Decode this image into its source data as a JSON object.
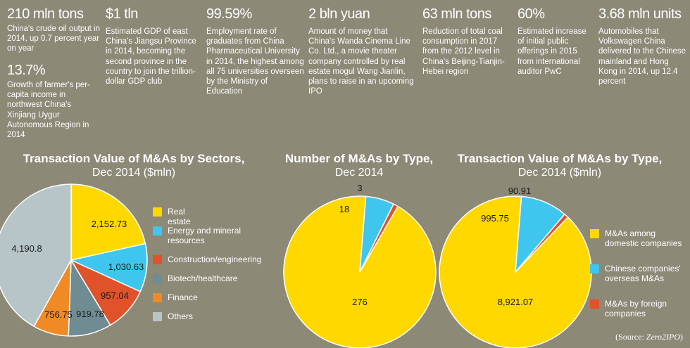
{
  "stats": [
    {
      "value": "210 mln tons",
      "desc": "China's crude oil output in 2014, up 0.7 percent year on year"
    },
    {
      "value": "13.7%",
      "desc": "Growth of farmer's per-capita income in northwest China's Xinjiang Uygur Autonomous Region in 2014"
    },
    {
      "value": "$1 tln",
      "desc": "Estimated GDP of east China's Jiangsu Province in 2014, becoming the second province in the country to join the trillion-dollar GDP club"
    },
    {
      "value": "99.59%",
      "desc": "Employment rate of graduates from China Pharmaceutical University in 2014, the highest among all 75 universities overseen by the Ministry of Education"
    },
    {
      "value": "2 bln yuan",
      "desc": "Amount of money that China's Wanda Cinema Line Co. Ltd., a movie theater company controlled by real estate mogul Wang Jianlin, plans to raise in an upcoming IPO"
    },
    {
      "value": "63 mln tons",
      "desc": "Reduction of total coal consumption in 2017 from the 2012 level in China's Beijing-Tianjin-Hebei region"
    },
    {
      "value": "60%",
      "desc": "Estimated increase of initial public offerings in 2015 from international auditor PwC"
    },
    {
      "value": "3.68 mln units",
      "desc": "Automobiles that Volkswagen China delivered to the Chinese mainland and Hong Kong in 2014, up 12.4 percent"
    }
  ],
  "chart_data": [
    {
      "type": "pie",
      "title": "Transaction Value of M&As by Sectors,",
      "subtitle": "Dec 2014 ($mln)",
      "categories": [
        "Real estate",
        "Energy and mineral resources",
        "Construction/engineering",
        "Biotech/healthcare",
        "Finance",
        "Others"
      ],
      "values": [
        2152.73,
        1030.63,
        957.04,
        919.78,
        756.75,
        4190.8
      ],
      "labels": [
        "2,152.73",
        "1,030.63",
        "957.04",
        "919.78",
        "756.75",
        "4,190.8"
      ],
      "colors": [
        "#ffd800",
        "#3fc6ef",
        "#e0522a",
        "#6f8c93",
        "#ef8a24",
        "#b8c5c8"
      ]
    },
    {
      "type": "pie",
      "title": "Number of M&As by Type,",
      "subtitle": "Dec 2014",
      "categories": [
        "M&As among domestic companies",
        "Chinese companies' overseas M&As",
        "M&As by foreign companies"
      ],
      "values": [
        276,
        18,
        3
      ],
      "labels": [
        "276",
        "18",
        "3"
      ],
      "colors": [
        "#ffd800",
        "#3fc6ef",
        "#e0522a"
      ]
    },
    {
      "type": "pie",
      "title": "Transaction Value of M&As by Type,",
      "subtitle": "Dec 2014 ($mln)",
      "categories": [
        "M&As among domestic companies",
        "Chinese companies' overseas M&As",
        "M&As by foreign companies"
      ],
      "values": [
        8921.07,
        995.75,
        90.91
      ],
      "labels": [
        "8,921.07",
        "995.75",
        "90.91"
      ],
      "colors": [
        "#ffd800",
        "#3fc6ef",
        "#e0522a"
      ]
    }
  ],
  "source": {
    "prefix": "(Source: ",
    "name": "Zero2IPO",
    "suffix": ")"
  }
}
